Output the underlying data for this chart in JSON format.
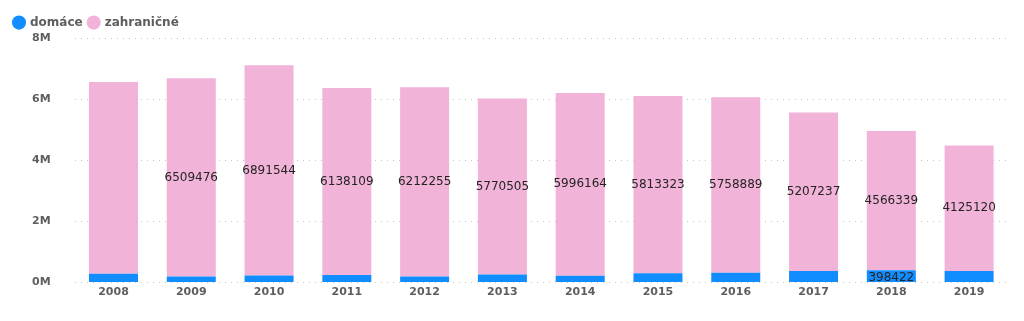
{
  "chart_data": {
    "type": "bar",
    "stacked": true,
    "categories": [
      "2008",
      "2009",
      "2010",
      "2011",
      "2012",
      "2013",
      "2014",
      "2015",
      "2016",
      "2017",
      "2018",
      "2019"
    ],
    "series": [
      {
        "name": "domáce",
        "color": "#118dff",
        "values": [
          280000,
          190000,
          230000,
          240000,
          190000,
          260000,
          220000,
          300000,
          320000,
          370000,
          398422,
          370000
        ],
        "value_labels": [
          null,
          null,
          null,
          null,
          null,
          null,
          null,
          null,
          null,
          null,
          "398422",
          null
        ]
      },
      {
        "name": "zahraničné",
        "color": "#f2b3d9",
        "values": [
          6300000,
          6509476,
          6891544,
          6138109,
          6212255,
          5770505,
          5996164,
          5813323,
          5758889,
          5207237,
          4566339,
          4125120
        ],
        "value_labels": [
          null,
          "6509476",
          "6891544",
          "6138109",
          "6212255",
          "5770505",
          "5996164",
          "5813323",
          "5758889",
          "5207237",
          "4566339",
          "4125120"
        ]
      }
    ],
    "ylim": [
      0,
      8000000
    ],
    "yticks": [
      {
        "value": 0,
        "label": "0M"
      },
      {
        "value": 2000000,
        "label": "2M"
      },
      {
        "value": 4000000,
        "label": "4M"
      },
      {
        "value": 6000000,
        "label": "6M"
      },
      {
        "value": 8000000,
        "label": "8M"
      }
    ],
    "grid": "y",
    "legend": "top left",
    "marker": "circle"
  }
}
